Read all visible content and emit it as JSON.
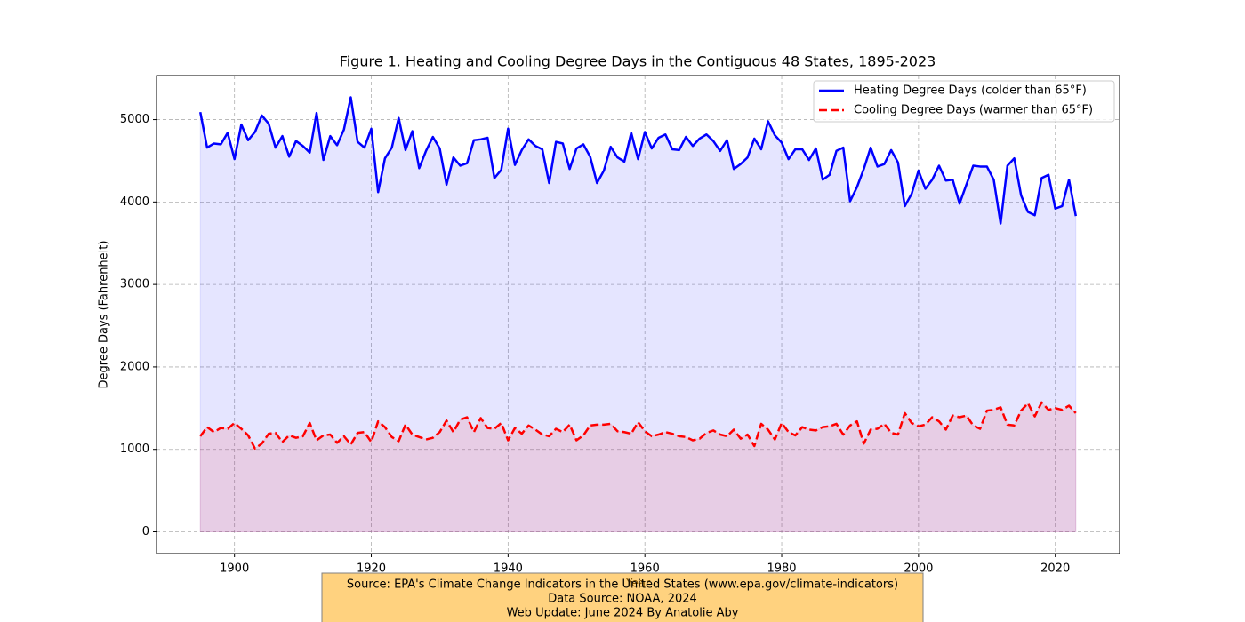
{
  "chart_data": {
    "type": "line",
    "title": "Figure 1. Heating and Cooling Degree Days in the Contiguous 48 States, 1895-2023",
    "xlabel": "Year",
    "ylabel": "Degree Days (Fahrenheit)",
    "x": [
      1895,
      1896,
      1897,
      1898,
      1899,
      1900,
      1901,
      1902,
      1903,
      1904,
      1905,
      1906,
      1907,
      1908,
      1909,
      1910,
      1911,
      1912,
      1913,
      1914,
      1915,
      1916,
      1917,
      1918,
      1919,
      1920,
      1921,
      1922,
      1923,
      1924,
      1925,
      1926,
      1927,
      1928,
      1929,
      1930,
      1931,
      1932,
      1933,
      1934,
      1935,
      1936,
      1937,
      1938,
      1939,
      1940,
      1941,
      1942,
      1943,
      1944,
      1945,
      1946,
      1947,
      1948,
      1949,
      1950,
      1951,
      1952,
      1953,
      1954,
      1955,
      1956,
      1957,
      1958,
      1959,
      1960,
      1961,
      1962,
      1963,
      1964,
      1965,
      1966,
      1967,
      1968,
      1969,
      1970,
      1971,
      1972,
      1973,
      1974,
      1975,
      1976,
      1977,
      1978,
      1979,
      1980,
      1981,
      1982,
      1983,
      1984,
      1985,
      1986,
      1987,
      1988,
      1989,
      1990,
      1991,
      1992,
      1993,
      1994,
      1995,
      1996,
      1997,
      1998,
      1999,
      2000,
      2001,
      2002,
      2003,
      2004,
      2005,
      2006,
      2007,
      2008,
      2009,
      2010,
      2011,
      2012,
      2013,
      2014,
      2015,
      2016,
      2017,
      2018,
      2019,
      2020,
      2021,
      2022,
      2023
    ],
    "series": [
      {
        "name": "Heating Degree Days (colder than 65°F)",
        "color": "#0000ff",
        "linestyle": "solid",
        "fill_opacity": 0.1,
        "values": [
          5090,
          4660,
          4710,
          4700,
          4840,
          4520,
          4940,
          4750,
          4850,
          5050,
          4950,
          4660,
          4800,
          4550,
          4740,
          4680,
          4600,
          5080,
          4510,
          4800,
          4690,
          4880,
          5270,
          4730,
          4660,
          4890,
          4120,
          4530,
          4660,
          5020,
          4630,
          4860,
          4410,
          4620,
          4790,
          4650,
          4210,
          4540,
          4440,
          4470,
          4750,
          4760,
          4780,
          4290,
          4390,
          4890,
          4450,
          4630,
          4760,
          4680,
          4640,
          4230,
          4730,
          4710,
          4400,
          4650,
          4700,
          4550,
          4230,
          4380,
          4670,
          4540,
          4490,
          4840,
          4520,
          4850,
          4650,
          4780,
          4820,
          4640,
          4630,
          4790,
          4680,
          4770,
          4820,
          4740,
          4620,
          4750,
          4400,
          4460,
          4540,
          4770,
          4640,
          4980,
          4810,
          4720,
          4520,
          4640,
          4640,
          4510,
          4650,
          4270,
          4330,
          4620,
          4660,
          4010,
          4180,
          4400,
          4660,
          4430,
          4460,
          4630,
          4480,
          3950,
          4100,
          4380,
          4160,
          4270,
          4440,
          4260,
          4270,
          3980,
          4210,
          4440,
          4430,
          4430,
          4270,
          3740,
          4440,
          4530,
          4080,
          3880,
          3840,
          4290,
          4330,
          3920,
          3950,
          4270,
          3830
        ]
      },
      {
        "name": "Cooling Degree Days (warmer than 65°F)",
        "color": "#ff0000",
        "linestyle": "dashed",
        "fill_opacity": 0.1,
        "values": [
          1160,
          1270,
          1210,
          1260,
          1250,
          1320,
          1250,
          1170,
          1010,
          1070,
          1190,
          1200,
          1090,
          1170,
          1140,
          1160,
          1320,
          1110,
          1170,
          1180,
          1080,
          1160,
          1060,
          1200,
          1210,
          1090,
          1340,
          1270,
          1150,
          1100,
          1300,
          1180,
          1150,
          1120,
          1140,
          1210,
          1350,
          1210,
          1360,
          1390,
          1210,
          1380,
          1260,
          1250,
          1320,
          1110,
          1260,
          1190,
          1290,
          1240,
          1180,
          1160,
          1250,
          1210,
          1300,
          1110,
          1170,
          1290,
          1300,
          1300,
          1310,
          1220,
          1210,
          1190,
          1330,
          1220,
          1160,
          1180,
          1210,
          1190,
          1160,
          1150,
          1110,
          1130,
          1200,
          1230,
          1180,
          1160,
          1240,
          1130,
          1180,
          1040,
          1310,
          1240,
          1120,
          1320,
          1210,
          1170,
          1270,
          1240,
          1230,
          1270,
          1280,
          1310,
          1180,
          1290,
          1340,
          1070,
          1240,
          1250,
          1310,
          1200,
          1180,
          1440,
          1320,
          1280,
          1300,
          1390,
          1340,
          1240,
          1410,
          1390,
          1410,
          1290,
          1250,
          1470,
          1480,
          1510,
          1300,
          1290,
          1470,
          1560,
          1400,
          1570,
          1480,
          1500,
          1480,
          1530,
          1440
        ]
      }
    ],
    "xlim": [
      1888.6,
      2029.4
    ],
    "xticks": [
      1900,
      1920,
      1940,
      1960,
      1980,
      2000,
      2020
    ],
    "ylim": [
      -264,
      5534
    ],
    "yticks": [
      0,
      1000,
      2000,
      3000,
      4000,
      5000
    ],
    "grid": true,
    "legend": "upper right",
    "footnote": [
      "Source: EPA's Climate Change Indicators in the United States (www.epa.gov/climate-indicators)",
      "Data Source: NOAA, 2024",
      "Web Update: June 2024 By Anatolie Aby"
    ]
  }
}
